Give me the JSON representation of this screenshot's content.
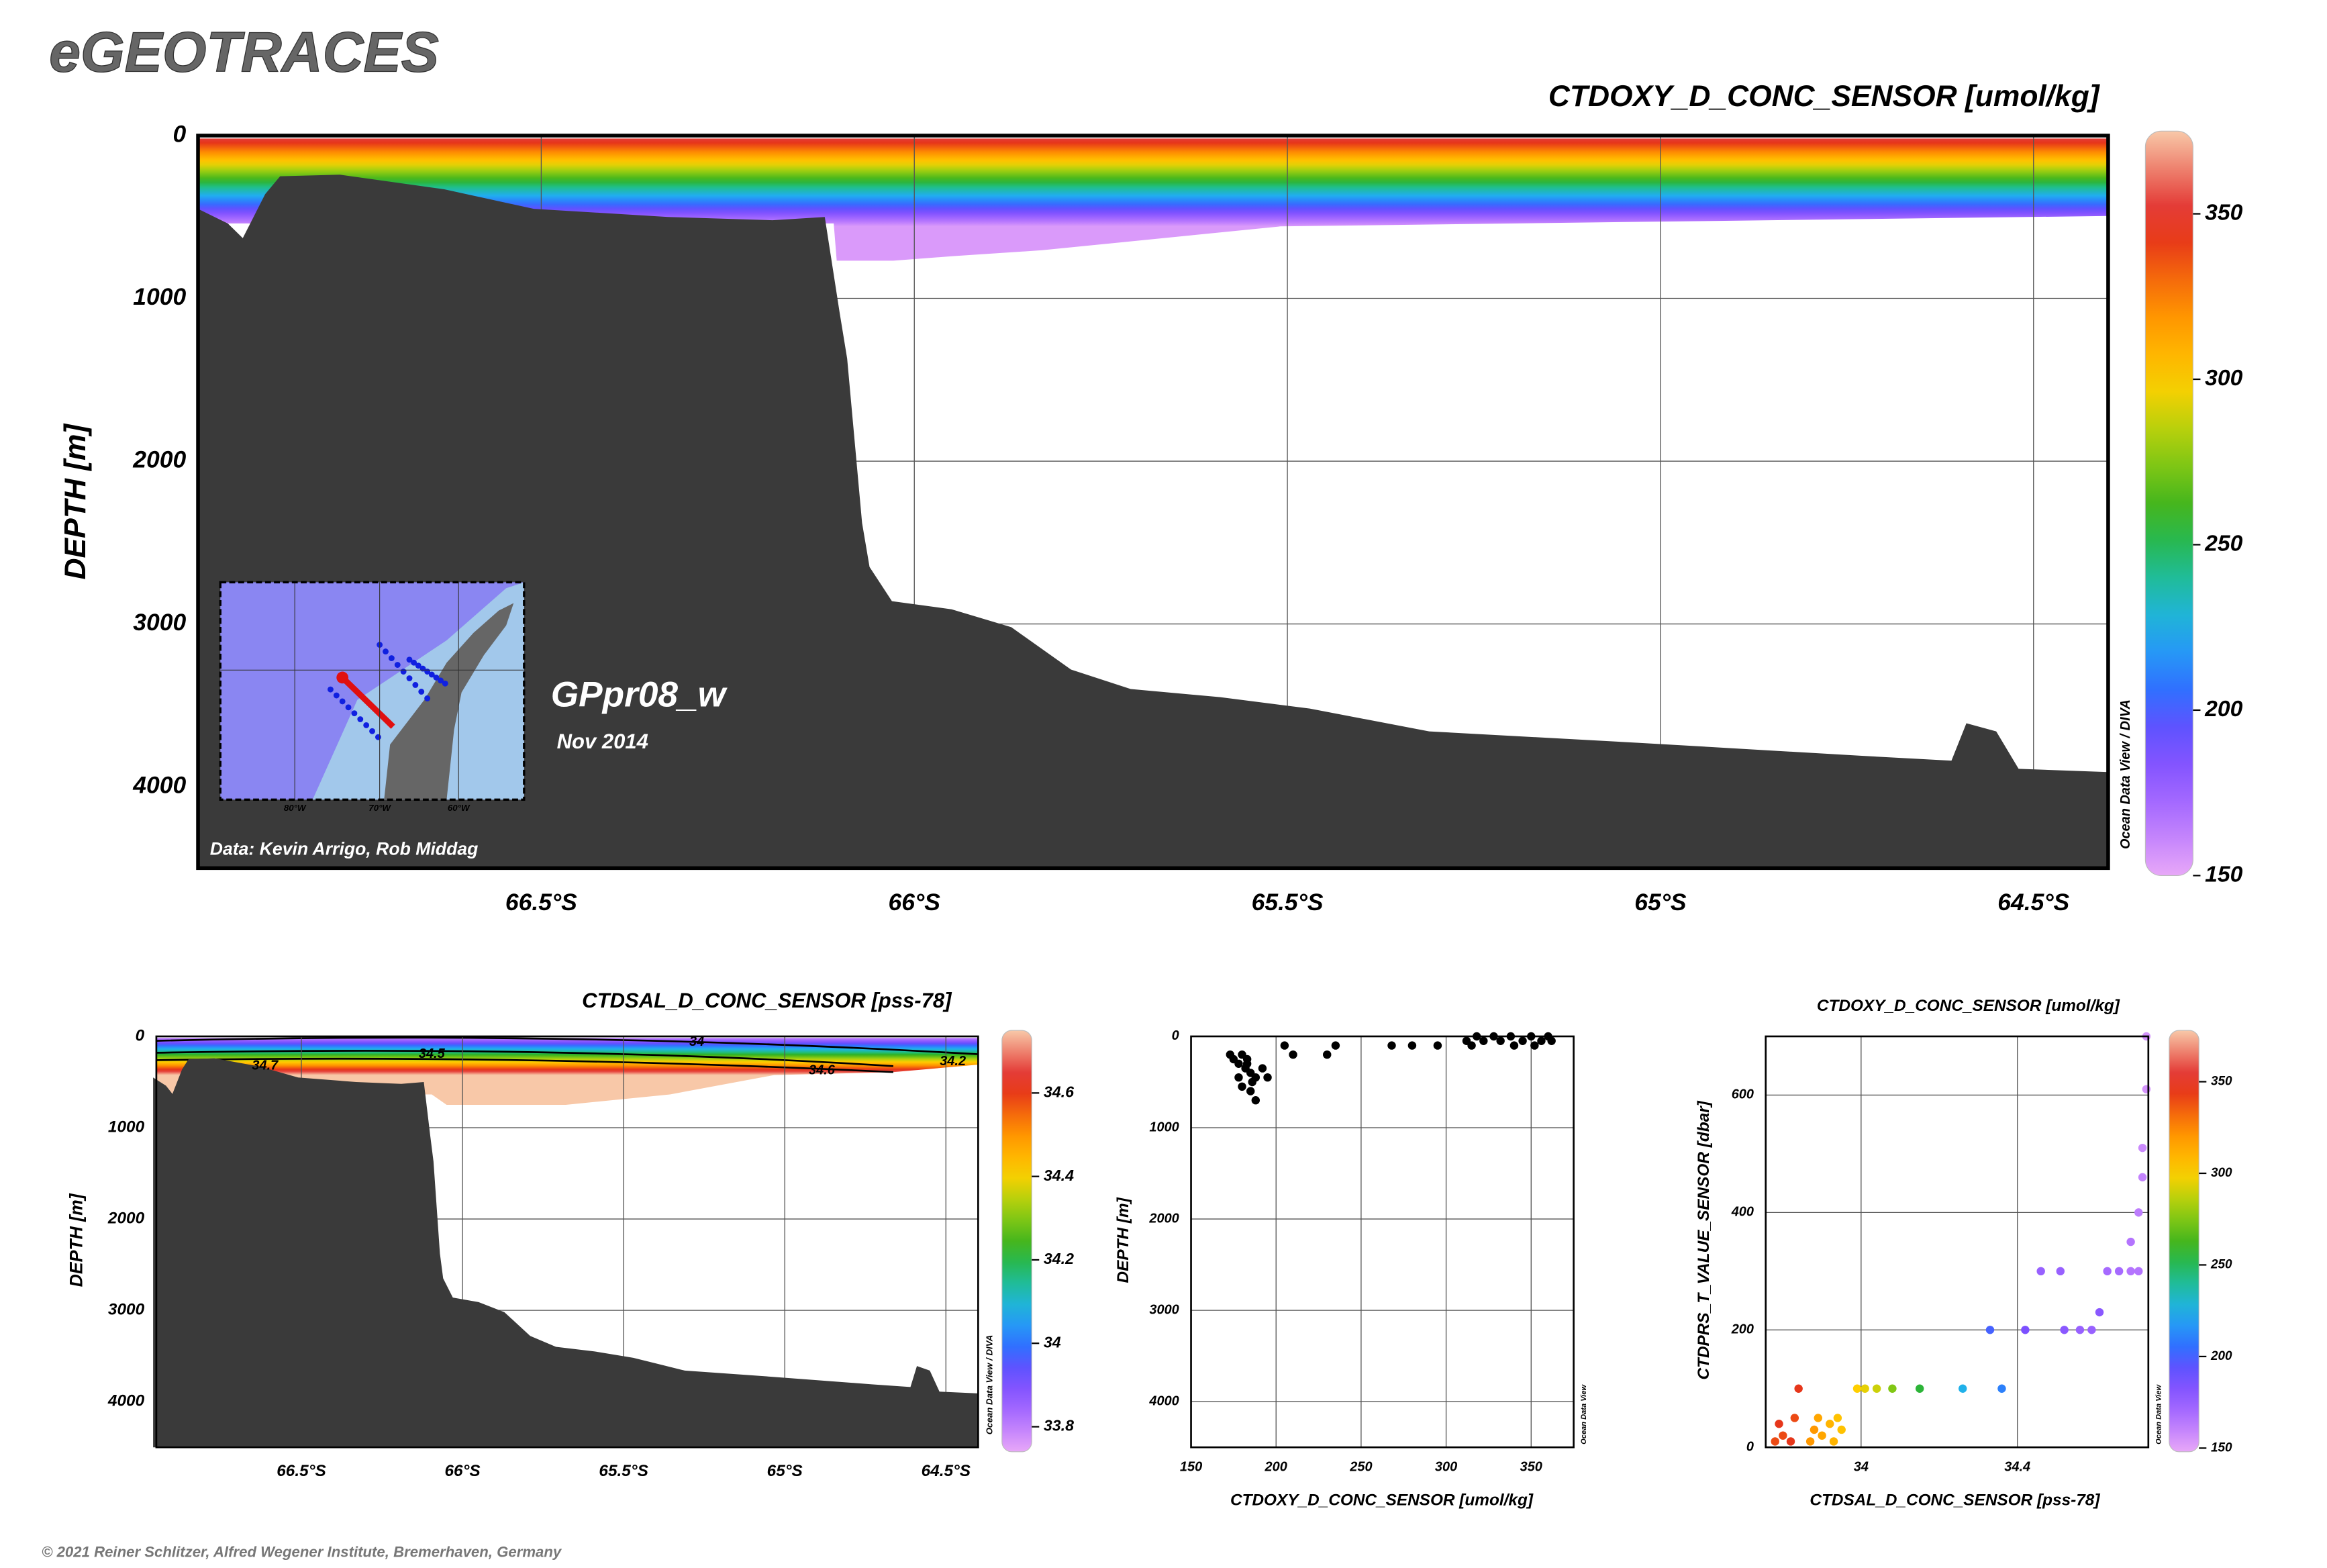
{
  "header": {
    "title": "eGEOTRACES"
  },
  "footer": "© 2021 Reiner Schlitzer, Alfred Wegener Institute, Bremerhaven, Germany",
  "chart_data": [
    {
      "type": "section",
      "title": "CTDOXY_D_CONC_SENSOR [umol/kg]",
      "y_label": "DEPTH [m]",
      "xlim": [
        -66.96,
        -64.4
      ],
      "xticks": [
        {
          "value": -66.5,
          "label": "66.5°S"
        },
        {
          "value": -66,
          "label": "66°S"
        },
        {
          "value": -65.5,
          "label": "65.5°S"
        },
        {
          "value": -65,
          "label": "65°S"
        },
        {
          "value": -64.5,
          "label": "64.5°S"
        }
      ],
      "ylim": [
        0,
        4500
      ],
      "yticks": [
        0,
        1000,
        2000,
        3000,
        4000
      ],
      "y_inverted": true,
      "grid": true,
      "colorbar": {
        "lim": [
          150,
          375
        ],
        "ticks": [
          150,
          200,
          250,
          300,
          350
        ]
      },
      "credit": "Ocean Data View / DIVA",
      "bathymetry": {
        "color": "#3a3a3a",
        "x": [
          -66.96,
          -66.92,
          -66.9,
          -66.88,
          -66.87,
          -66.85,
          -66.77,
          -66.63,
          -66.51,
          -66.33,
          -66.19,
          -66.12,
          -66.1,
          -66.09,
          -66.07,
          -66.06,
          -66.03,
          -65.95,
          -65.87,
          -65.79,
          -65.71,
          -65.59,
          -65.47,
          -65.31,
          -65.03,
          -64.73,
          -64.61,
          -64.59,
          -64.55,
          -64.52,
          -64.4
        ],
        "values": [
          450,
          540,
          630,
          450,
          360,
          250,
          240,
          330,
          450,
          500,
          520,
          500,
          1090,
          1370,
          2380,
          2650,
          2860,
          2910,
          3020,
          3280,
          3400,
          3450,
          3520,
          3660,
          3730,
          3810,
          3840,
          3610,
          3660,
          3890,
          3910
        ]
      },
      "annotations": [
        "GPpr08_w",
        "Nov 2014",
        "Data: Kevin Arrigo, Rob Middag"
      ],
      "inset_labels": [
        "80°W",
        "70°W",
        "60°W"
      ]
    },
    {
      "type": "section",
      "title": "CTDSAL_D_CONC_SENSOR [pss-78]",
      "y_label": "DEPTH [m]",
      "xlim": [
        -66.95,
        -64.4
      ],
      "xticks": [
        {
          "value": -66.5,
          "label": "66.5°S"
        },
        {
          "value": -66,
          "label": "66°S"
        },
        {
          "value": -65.5,
          "label": "65.5°S"
        },
        {
          "value": -65,
          "label": "65°S"
        },
        {
          "value": -64.5,
          "label": "64.5°S"
        }
      ],
      "ylim": [
        0,
        4500
      ],
      "yticks": [
        0,
        1000,
        2000,
        3000,
        4000
      ],
      "y_inverted": true,
      "grid": true,
      "colorbar": {
        "lim": [
          33.74,
          34.75
        ],
        "ticks": [
          33.8,
          34,
          34.2,
          34.4,
          34.6
        ]
      },
      "credit": "Ocean Data View / DIVA",
      "bathymetry": {
        "color": "#3a3a3a",
        "x": [
          -66.96,
          -66.92,
          -66.9,
          -66.88,
          -66.87,
          -66.85,
          -66.77,
          -66.63,
          -66.51,
          -66.33,
          -66.19,
          -66.12,
          -66.1,
          -66.09,
          -66.07,
          -66.06,
          -66.03,
          -65.95,
          -65.87,
          -65.79,
          -65.71,
          -65.59,
          -65.47,
          -65.31,
          -65.03,
          -64.73,
          -64.61,
          -64.59,
          -64.55,
          -64.52,
          -64.4
        ],
        "values": [
          450,
          540,
          630,
          450,
          360,
          250,
          240,
          330,
          450,
          500,
          520,
          500,
          1090,
          1370,
          2380,
          2650,
          2860,
          2910,
          3020,
          3280,
          3400,
          3450,
          3520,
          3660,
          3730,
          3810,
          3840,
          3610,
          3660,
          3890,
          3910
        ]
      },
      "contour_labels": [
        "34",
        "34.5",
        "34.6",
        "34.7",
        "34.2"
      ]
    },
    {
      "type": "scatter",
      "x_label": "CTDOXY_D_CONC_SENSOR [umol/kg]",
      "y_label": "DEPTH [m]",
      "xlim": [
        150,
        375
      ],
      "xticks": [
        150,
        200,
        250,
        300,
        350
      ],
      "ylim": [
        0,
        4500
      ],
      "yticks": [
        0,
        1000,
        2000,
        3000,
        4000
      ],
      "y_inverted": true,
      "grid": true,
      "credit": "Ocean Data View",
      "color": "#000000",
      "x": [
        173,
        175,
        178,
        180,
        182,
        183,
        185,
        186,
        188,
        178,
        180,
        185,
        188,
        192,
        195,
        183,
        205,
        210,
        230,
        235,
        268,
        280,
        295,
        312,
        315,
        318,
        322,
        328,
        332,
        338,
        340,
        345,
        350,
        352,
        356,
        360,
        362
      ],
      "values": [
        200,
        250,
        300,
        200,
        350,
        300,
        400,
        500,
        450,
        450,
        550,
        600,
        700,
        350,
        450,
        250,
        100,
        200,
        200,
        100,
        100,
        100,
        100,
        50,
        100,
        0,
        50,
        0,
        50,
        0,
        100,
        50,
        0,
        100,
        50,
        0,
        50
      ]
    },
    {
      "type": "scatter",
      "title": "CTDOXY_D_CONC_SENSOR [umol/kg]",
      "x_label": "CTDSAL_D_CONC_SENSOR [pss-78]",
      "y_label": "CTDPRS_T_VALUE_SENSOR [dbar]",
      "xlim": [
        33.756,
        34.735
      ],
      "xticks": [
        34,
        34.4
      ],
      "ylim": [
        0,
        700
      ],
      "yticks": [
        0,
        200,
        400,
        600
      ],
      "y_inverted": false,
      "grid": true,
      "colorbar": {
        "lim": [
          148,
          378
        ],
        "ticks": [
          150,
          200,
          250,
          300,
          350
        ]
      },
      "credit": "Ocean Data View",
      "x": [
        33.78,
        33.79,
        33.8,
        33.82,
        33.83,
        33.84,
        33.87,
        33.88,
        33.89,
        33.9,
        33.92,
        33.93,
        33.94,
        33.95,
        33.99,
        34.01,
        34.04,
        34.08,
        34.15,
        34.26,
        34.36,
        34.33,
        34.42,
        34.52,
        34.56,
        34.59,
        34.61,
        34.46,
        34.51,
        34.63,
        34.66,
        34.69,
        34.71,
        34.69,
        34.71,
        34.72,
        34.72,
        34.73,
        34.73
      ],
      "values": [
        10,
        40,
        20,
        10,
        50,
        100,
        10,
        30,
        50,
        20,
        40,
        10,
        50,
        30,
        100,
        100,
        100,
        100,
        100,
        100,
        100,
        200,
        200,
        200,
        200,
        200,
        230,
        300,
        300,
        300,
        300,
        300,
        300,
        350,
        400,
        460,
        510,
        610,
        700
      ],
      "z": [
        340,
        345,
        340,
        345,
        340,
        345,
        320,
        320,
        315,
        315,
        310,
        310,
        305,
        305,
        300,
        295,
        290,
        275,
        255,
        225,
        210,
        200,
        185,
        180,
        175,
        175,
        180,
        175,
        175,
        170,
        170,
        165,
        165,
        165,
        162,
        160,
        158,
        155,
        155
      ]
    }
  ]
}
